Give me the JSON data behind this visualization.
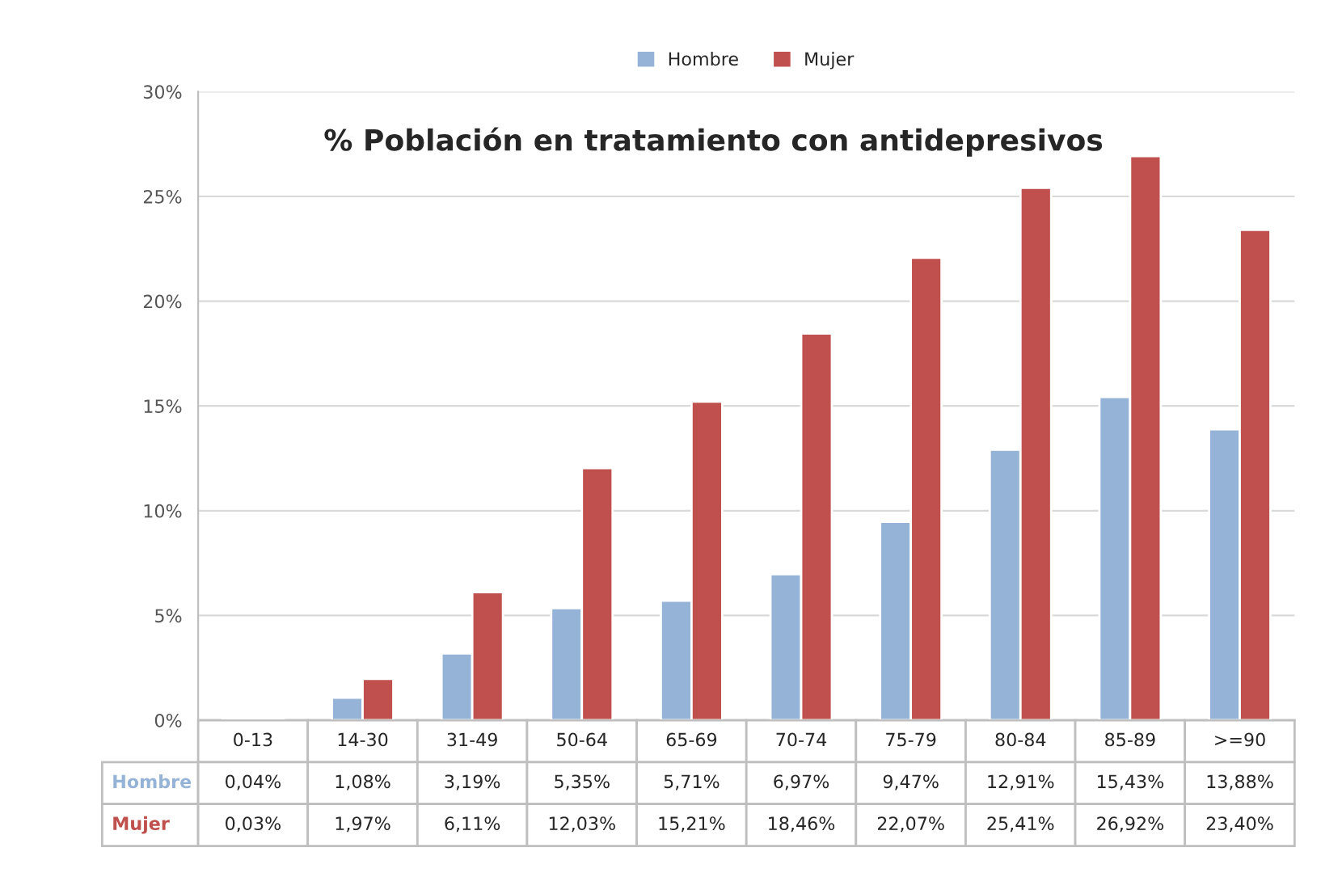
{
  "chart_data": {
    "type": "bar",
    "title": "% Población en tratamiento con antidepresivos",
    "categories": [
      "0-13",
      "14-30",
      "31-49",
      "50-64",
      "65-69",
      "70-74",
      "75-79",
      "80-84",
      "85-89",
      ">=90"
    ],
    "series": [
      {
        "name": "Hombre",
        "color": "#95b3d7",
        "values": [
          0.04,
          1.08,
          3.19,
          5.35,
          5.71,
          6.97,
          9.47,
          12.91,
          15.43,
          13.88
        ],
        "value_labels": [
          "0,04%",
          "1,08%",
          "3,19%",
          "5,35%",
          "5,71%",
          "6,97%",
          "9,47%",
          "12,91%",
          "15,43%",
          "13,88%"
        ]
      },
      {
        "name": "Mujer",
        "color": "#c0504d",
        "values": [
          0.03,
          1.97,
          6.11,
          12.03,
          15.21,
          18.46,
          22.07,
          25.41,
          26.92,
          23.4
        ],
        "value_labels": [
          "0,03%",
          "1,97%",
          "6,11%",
          "12,03%",
          "15,21%",
          "18,46%",
          "22,07%",
          "25,41%",
          "26,92%",
          "23,40%"
        ]
      }
    ],
    "ylim": [
      0,
      30
    ],
    "yticks": [
      {
        "value": 0,
        "label": "0%"
      },
      {
        "value": 5,
        "label": "5%"
      },
      {
        "value": 10,
        "label": "10%"
      },
      {
        "value": 15,
        "label": "15%"
      },
      {
        "value": 20,
        "label": "20%"
      },
      {
        "value": 25,
        "label": "25%"
      },
      {
        "value": 30,
        "label": "30%"
      }
    ],
    "grid": "y",
    "legend": "top"
  }
}
